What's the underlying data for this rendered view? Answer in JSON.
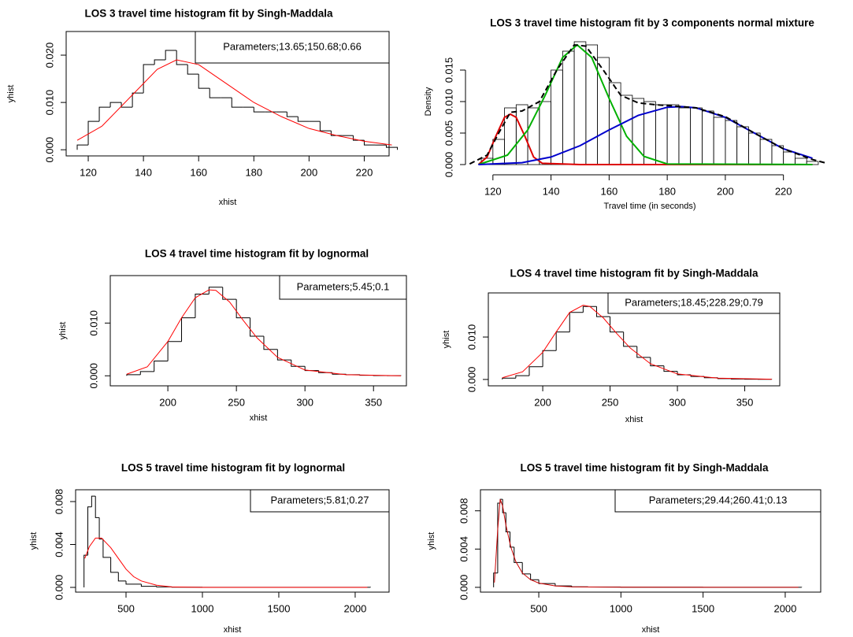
{
  "chart_data": [
    {
      "type": "histogram",
      "hist_style": "step",
      "frame": true,
      "title": "LOS 3 travel time histogram fit by Singh-Maddala",
      "xlabel": "xhist",
      "ylabel": "yhist",
      "annotation": "Parameters;13.65;150.68;0.66",
      "color": "#000000",
      "bins": [
        116,
        120,
        124,
        128,
        132,
        136,
        140,
        144,
        148,
        152,
        156,
        160,
        164,
        168,
        172,
        176,
        180,
        184,
        188,
        192,
        196,
        200,
        204,
        208,
        212,
        216,
        220,
        224,
        228,
        232
      ],
      "values": [
        0.001,
        0.006,
        0.009,
        0.01,
        0.009,
        0.012,
        0.018,
        0.019,
        0.021,
        0.018,
        0.016,
        0.013,
        0.011,
        0.011,
        0.009,
        0.009,
        0.008,
        0.008,
        0.008,
        0.007,
        0.006,
        0.006,
        0.004,
        0.003,
        0.003,
        0.002,
        0.001,
        0.001,
        0.0005
      ],
      "curves": [
        {
          "color": "#ff0000",
          "x": [
            116,
            125,
            135,
            145,
            152,
            160,
            170,
            180,
            190,
            200,
            210,
            220,
            230
          ],
          "values": [
            0.002,
            0.005,
            0.011,
            0.017,
            0.019,
            0.018,
            0.014,
            0.01,
            0.007,
            0.0045,
            0.003,
            0.0018,
            0.001
          ]
        }
      ],
      "xlim": [
        112,
        229
      ],
      "ylim": [
        -0.0013,
        0.025
      ],
      "xticks": [
        120,
        140,
        160,
        180,
        200,
        220
      ],
      "yticks": [
        {
          "value": 0,
          "label": "0.000"
        },
        {
          "value": 0.01,
          "label": "0.010"
        },
        {
          "value": 0.02,
          "label": "0.020"
        }
      ]
    },
    {
      "type": "histogram",
      "hist_style": "bars",
      "frame": false,
      "title": "LOS 3 travel time histogram fit by 3 components normal mixture",
      "xlabel": "Travel time (in seconds)",
      "ylabel": "Density",
      "color": "#000000",
      "bins": [
        116,
        120,
        124,
        128,
        132,
        136,
        140,
        144,
        148,
        152,
        156,
        160,
        164,
        168,
        172,
        176,
        180,
        184,
        188,
        192,
        196,
        200,
        204,
        208,
        212,
        216,
        220,
        224,
        228,
        232
      ],
      "values": [
        0.001,
        0.004,
        0.009,
        0.0095,
        0.009,
        0.01,
        0.015,
        0.018,
        0.0195,
        0.019,
        0.017,
        0.013,
        0.011,
        0.0105,
        0.01,
        0.0095,
        0.0095,
        0.009,
        0.009,
        0.0085,
        0.0075,
        0.007,
        0.006,
        0.005,
        0.004,
        0.003,
        0.002,
        0.001,
        0.0005
      ],
      "curves": [
        {
          "color": "#dd0000",
          "x": [
            115,
            118,
            121,
            124,
            126,
            128,
            131,
            134,
            137,
            150,
            230
          ],
          "values": [
            0,
            0.0012,
            0.0045,
            0.0075,
            0.008,
            0.0075,
            0.0045,
            0.0012,
            0.0002,
            0,
            0
          ]
        },
        {
          "color": "#00b000",
          "x": [
            115,
            125,
            132,
            138,
            144,
            149,
            154,
            160,
            166,
            172,
            180,
            230
          ],
          "values": [
            0,
            0.0015,
            0.0055,
            0.011,
            0.017,
            0.019,
            0.017,
            0.0105,
            0.0045,
            0.0013,
            0.0001,
            0
          ]
        },
        {
          "color": "#0000cc",
          "x": [
            115,
            130,
            140,
            150,
            160,
            170,
            180,
            185,
            190,
            200,
            210,
            220,
            230
          ],
          "values": [
            0,
            0.0003,
            0.0012,
            0.003,
            0.0055,
            0.0078,
            0.0091,
            0.0092,
            0.009,
            0.0075,
            0.005,
            0.0025,
            0.001
          ]
        },
        {
          "color": "#000000",
          "style": "dashed",
          "x": [
            112,
            118,
            122,
            126,
            130,
            136,
            142,
            148,
            152,
            158,
            164,
            170,
            176,
            182,
            190,
            200,
            210,
            220,
            230,
            235
          ],
          "values": [
            0.0001,
            0.0015,
            0.005,
            0.0083,
            0.0085,
            0.01,
            0.015,
            0.019,
            0.0188,
            0.015,
            0.011,
            0.0098,
            0.0095,
            0.0093,
            0.009,
            0.0076,
            0.005,
            0.0025,
            0.0008,
            0.0002
          ]
        }
      ],
      "xlim": [
        113,
        235
      ],
      "ylim": [
        -0.0005,
        0.0205
      ],
      "xticks": [
        120,
        140,
        160,
        180,
        200,
        220
      ],
      "yticks": [
        {
          "value": 0,
          "label": "0.000"
        },
        {
          "value": 0.005,
          "label": "0.005"
        },
        {
          "value": 0.01,
          "label": "0.010"
        },
        {
          "value": 0.015,
          "label": "0.015"
        }
      ]
    },
    {
      "type": "histogram",
      "hist_style": "step",
      "frame": true,
      "title": "LOS 4 travel time histogram fit by lognormal",
      "xlabel": "xhist",
      "ylabel": "yhist",
      "annotation": "Parameters;5.45;0.1",
      "color": "#000000",
      "bins": [
        170,
        180,
        190,
        200,
        210,
        220,
        230,
        240,
        250,
        260,
        270,
        280,
        290,
        300,
        310,
        320,
        330,
        340,
        350,
        360,
        370
      ],
      "values": [
        0.0002,
        0.0008,
        0.0028,
        0.0065,
        0.011,
        0.0155,
        0.0168,
        0.0145,
        0.011,
        0.0075,
        0.005,
        0.003,
        0.0018,
        0.001,
        0.0006,
        0.0003,
        0.0002,
        0.0001,
        5e-05,
        2e-05
      ],
      "curves": [
        {
          "color": "#ff0000",
          "x": [
            170,
            185,
            200,
            210,
            220,
            230,
            235,
            245,
            255,
            265,
            280,
            300,
            330,
            370
          ],
          "values": [
            0.0003,
            0.0017,
            0.0065,
            0.011,
            0.0148,
            0.0163,
            0.0162,
            0.014,
            0.0105,
            0.0072,
            0.0035,
            0.0011,
            0.0002,
            0
          ]
        }
      ],
      "xlim": [
        158,
        374
      ],
      "ylim": [
        -0.0019,
        0.019
      ],
      "xticks": [
        200,
        250,
        300,
        350
      ],
      "yticks": [
        {
          "value": 0,
          "label": "0.000"
        },
        {
          "value": 0.01,
          "label": "0.010"
        }
      ]
    },
    {
      "type": "histogram",
      "hist_style": "step",
      "frame": true,
      "title": "LOS 4 travel time histogram fit by Singh-Maddala",
      "xlabel": "xhist",
      "ylabel": "yhist",
      "annotation": "Parameters;18.45;228.29;0.79",
      "color": "#000000",
      "bins": [
        170,
        180,
        190,
        200,
        210,
        220,
        230,
        240,
        250,
        260,
        270,
        280,
        290,
        300,
        310,
        320,
        330,
        340,
        350,
        360,
        370
      ],
      "values": [
        0.0003,
        0.0009,
        0.003,
        0.0068,
        0.0112,
        0.0158,
        0.0172,
        0.0148,
        0.0112,
        0.0078,
        0.0052,
        0.0032,
        0.0019,
        0.0011,
        0.0007,
        0.0004,
        0.0002,
        0.0001,
        5e-05,
        2e-05
      ],
      "curves": [
        {
          "color": "#ff0000",
          "x": [
            170,
            185,
            200,
            210,
            220,
            230,
            235,
            245,
            255,
            265,
            280,
            300,
            330,
            370
          ],
          "values": [
            0.0004,
            0.0018,
            0.0064,
            0.0112,
            0.0158,
            0.0175,
            0.0172,
            0.0145,
            0.0108,
            0.0074,
            0.0037,
            0.0013,
            0.0003,
            5e-05
          ]
        }
      ],
      "xlim": [
        159.6,
        376
      ],
      "ylim": [
        -0.0015,
        0.0204
      ],
      "xticks": [
        200,
        250,
        300,
        350
      ],
      "yticks": [
        {
          "value": 0,
          "label": "0.000"
        },
        {
          "value": 0.01,
          "label": "0.010"
        }
      ]
    },
    {
      "type": "histogram",
      "hist_style": "step",
      "frame": true,
      "title": "LOS 5 travel time histogram fit by lognormal",
      "xlabel": "xhist",
      "ylabel": "yhist",
      "annotation": "Parameters;5.81;0.27",
      "color": "#000000",
      "bins": [
        225,
        250,
        275,
        300,
        325,
        350,
        400,
        450,
        500,
        600,
        700,
        800,
        1000,
        1500,
        2100
      ],
      "values": [
        0.003,
        0.0075,
        0.0085,
        0.0065,
        0.0045,
        0.0028,
        0.0014,
        0.0006,
        0.0003,
        0.0001,
        5e-05,
        2e-05,
        1e-05,
        5e-06
      ],
      "curves": [
        {
          "color": "#ff0000",
          "x": [
            230,
            260,
            300,
            340,
            400,
            450,
            500,
            550,
            600,
            700,
            800,
            1000,
            2080
          ],
          "values": [
            0.0027,
            0.0038,
            0.0046,
            0.0046,
            0.0037,
            0.0027,
            0.0017,
            0.001,
            0.0006,
            0.0002,
            5e-05,
            0,
            0
          ]
        }
      ],
      "xlim": [
        170,
        2222
      ],
      "ylim": [
        -0.00044,
        0.0091
      ],
      "xticks": [
        500,
        1000,
        1500,
        2000
      ],
      "yticks": [
        {
          "value": 0,
          "label": "0.000"
        },
        {
          "value": 0.004,
          "label": "0.004"
        },
        {
          "value": 0.008,
          "label": "0.008"
        }
      ]
    },
    {
      "type": "histogram",
      "hist_style": "step",
      "frame": true,
      "title": "LOS 5 travel time histogram fit by Singh-Maddala",
      "xlabel": "xhist",
      "ylabel": "yhist",
      "annotation": "Parameters;29.44;260.41;0.13",
      "color": "#000000",
      "bins": [
        225,
        250,
        265,
        280,
        300,
        325,
        350,
        400,
        450,
        500,
        600,
        700,
        800,
        1000,
        1500,
        2100
      ],
      "values": [
        0.0015,
        0.0088,
        0.0092,
        0.0078,
        0.0058,
        0.0042,
        0.0026,
        0.0014,
        0.0008,
        0.0004,
        0.00015,
        6e-05,
        3e-05,
        1e-05,
        5e-06
      ],
      "curves": [
        {
          "color": "#cc0000",
          "x": [
            230,
            250,
            265,
            280,
            300,
            330,
            360,
            400,
            450,
            500,
            600,
            700,
            800,
            1000,
            1500,
            2080
          ],
          "values": [
            0.0005,
            0.006,
            0.0092,
            0.0085,
            0.0065,
            0.0042,
            0.0027,
            0.0015,
            0.0008,
            0.00045,
            0.00015,
            6e-05,
            3e-05,
            1e-05,
            0,
            0
          ]
        }
      ],
      "xlim": [
        145,
        2216
      ],
      "ylim": [
        -0.0005,
        0.0102
      ],
      "xticks": [
        500,
        1000,
        1500,
        2000
      ],
      "yticks": [
        {
          "value": 0,
          "label": "0.000"
        },
        {
          "value": 0.004,
          "label": "0.004"
        },
        {
          "value": 0.008,
          "label": "0.008"
        }
      ]
    }
  ]
}
